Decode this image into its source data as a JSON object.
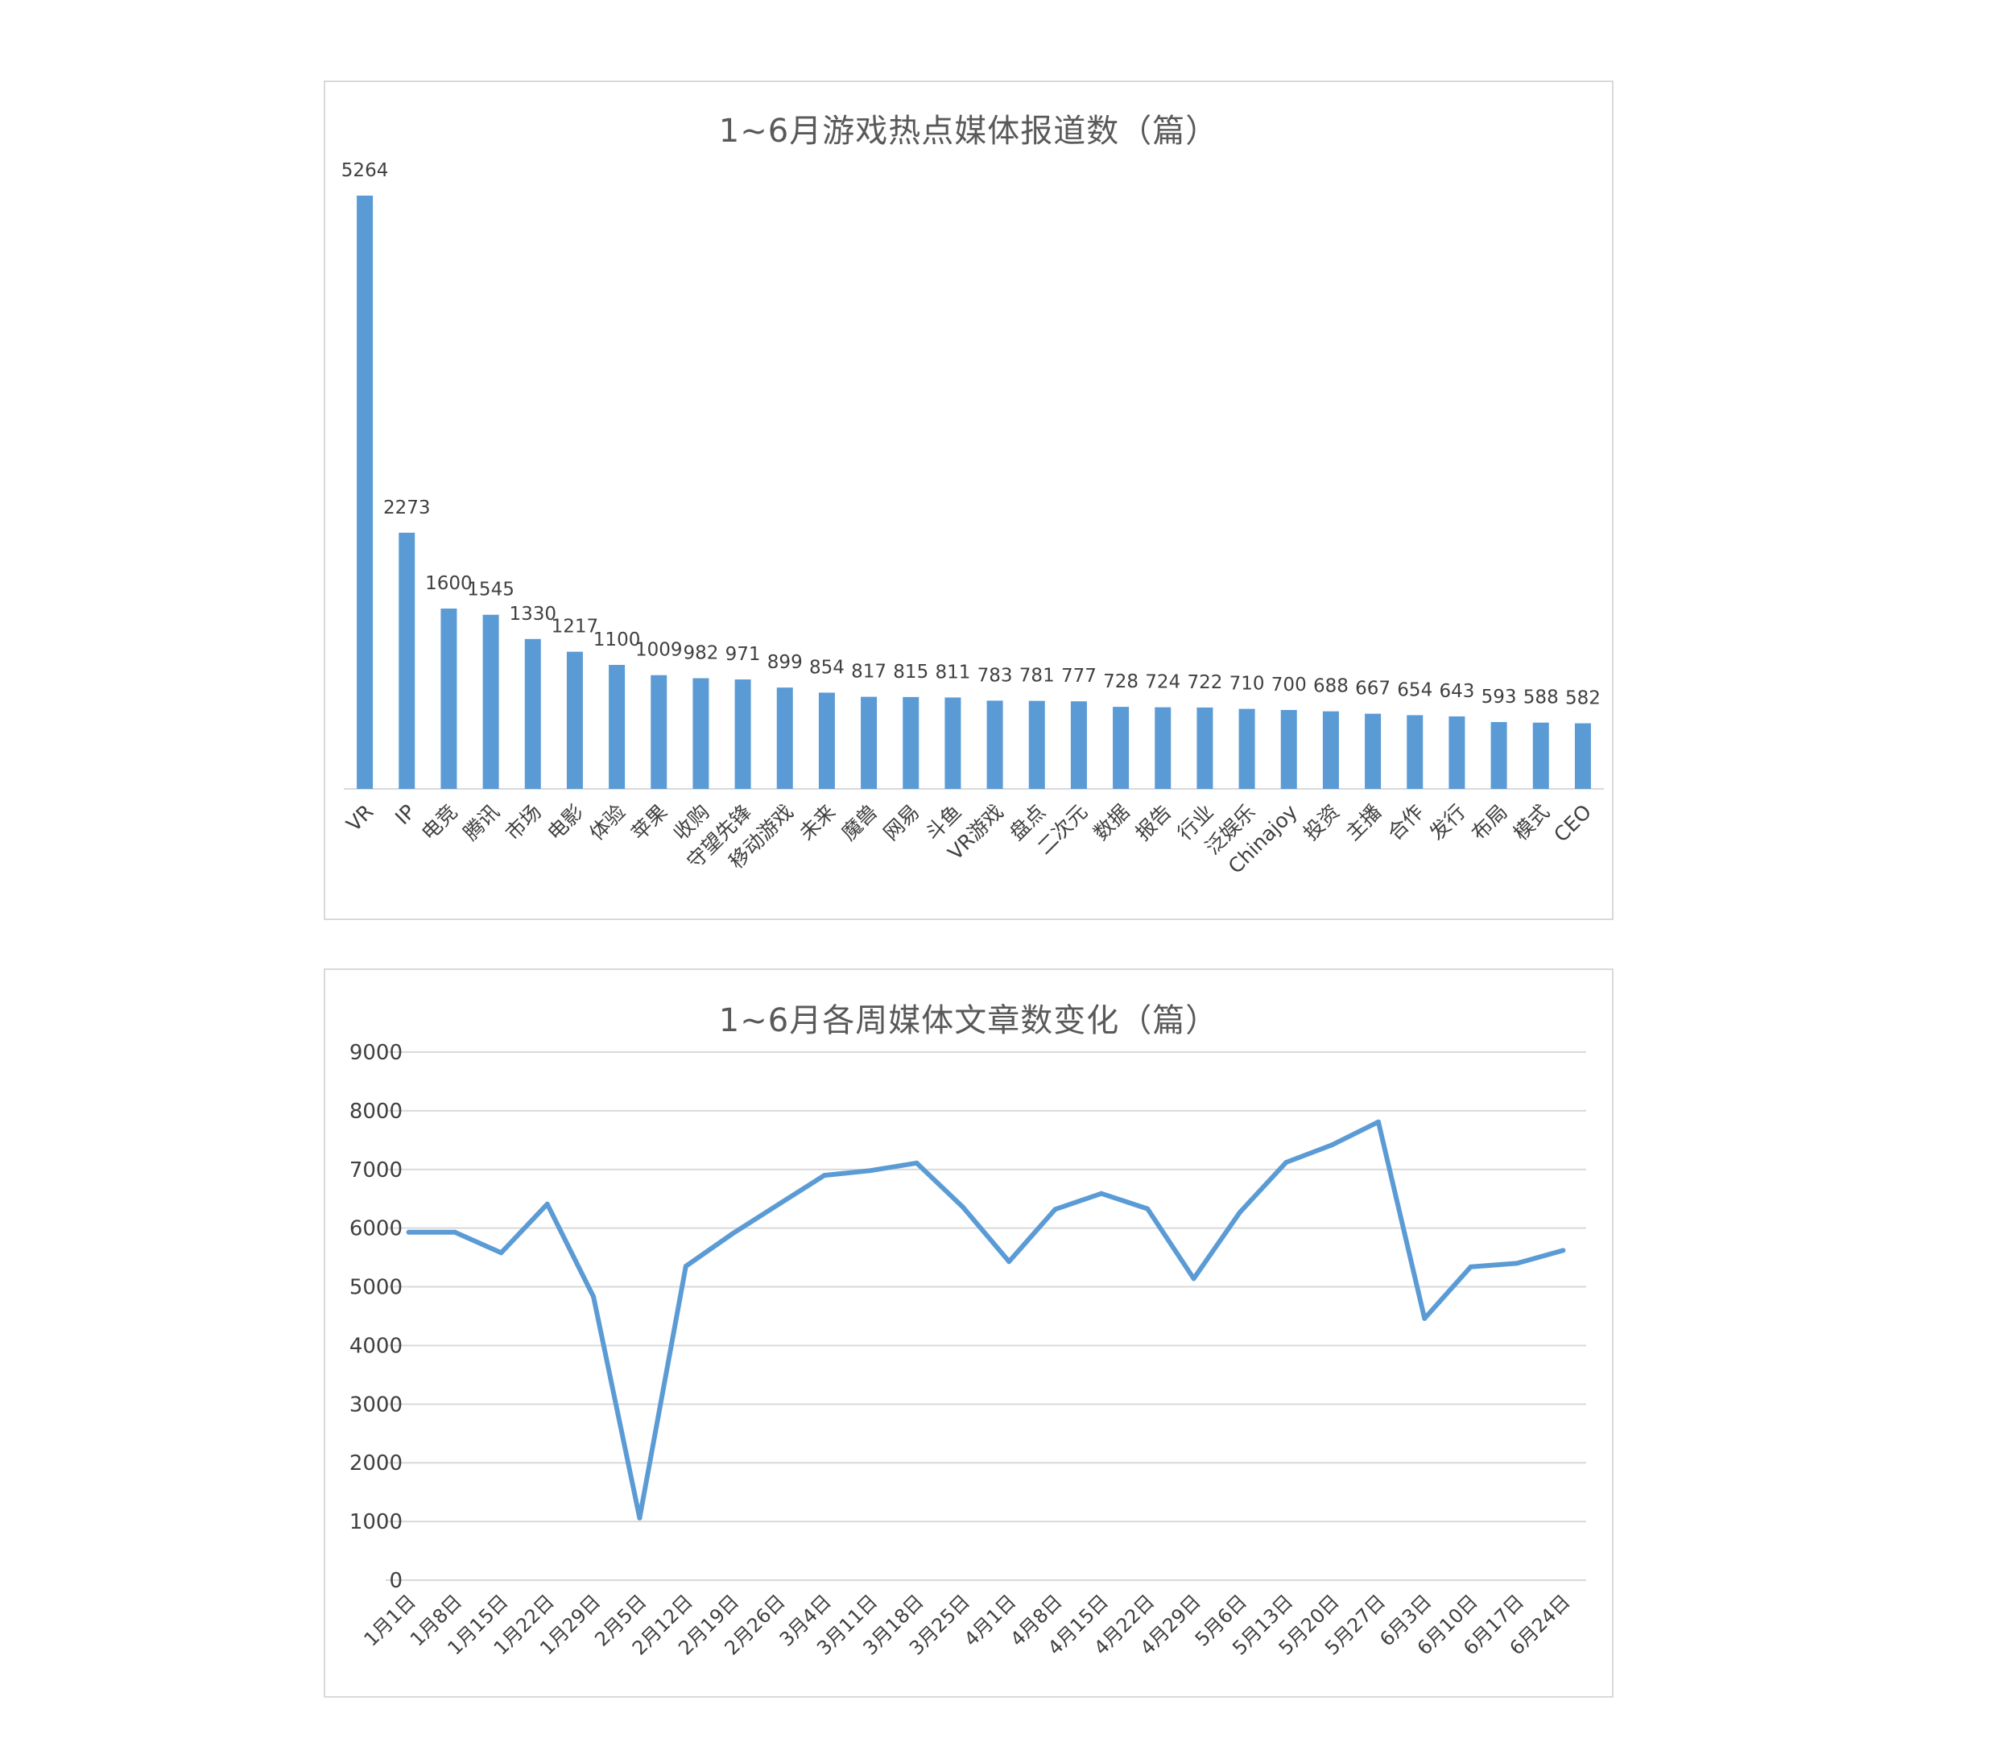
{
  "colors": {
    "series": "#5b9bd5",
    "grid": "#d9d9d9",
    "axis": "#d9d9d9",
    "text": "#404040",
    "title": "#595959"
  },
  "chart_data": [
    {
      "type": "bar",
      "title": "1~6月游戏热点媒体报道数（篇）",
      "categories": [
        "VR",
        "IP",
        "电竞",
        "腾讯",
        "市场",
        "电影",
        "体验",
        "苹果",
        "收购",
        "守望先锋",
        "移动游戏",
        "未来",
        "魔兽",
        "网易",
        "斗鱼",
        "VR游戏",
        "盘点",
        "二次元",
        "数据",
        "报告",
        "行业",
        "泛娱乐",
        "Chinajoy",
        "投资",
        "主播",
        "合作",
        "发行",
        "布局",
        "模式",
        "CEO"
      ],
      "values": [
        5264,
        2273,
        1600,
        1545,
        1330,
        1217,
        1100,
        1009,
        982,
        971,
        899,
        854,
        817,
        815,
        811,
        783,
        781,
        777,
        728,
        724,
        722,
        710,
        700,
        688,
        667,
        654,
        643,
        593,
        588,
        582
      ],
      "data_labels": true,
      "gridlines": false,
      "legend": "none"
    },
    {
      "type": "line",
      "title": "1~6月各周媒体文章数变化（篇）",
      "x": [
        "1月1日",
        "1月8日",
        "1月15日",
        "1月22日",
        "1月29日",
        "2月5日",
        "2月12日",
        "2月19日",
        "2月26日",
        "3月4日",
        "3月11日",
        "3月18日",
        "3月25日",
        "4月1日",
        "4月8日",
        "4月15日",
        "4月22日",
        "4月29日",
        "5月6日",
        "5月13日",
        "5月20日",
        "5月27日",
        "6月3日",
        "6月10日",
        "6月17日",
        "6月24日"
      ],
      "values": [
        5930,
        5930,
        5580,
        6410,
        4830,
        1060,
        5350,
        5900,
        6400,
        6900,
        6980,
        7110,
        6360,
        5430,
        6320,
        6590,
        6330,
        5140,
        6270,
        7120,
        7420,
        7810,
        4460,
        5340,
        5400,
        5620
      ],
      "yticks": [
        "0",
        "1000",
        "2000",
        "3000",
        "4000",
        "5000",
        "6000",
        "7000",
        "8000",
        "9000"
      ],
      "ylim": [
        0,
        9000
      ],
      "gridlines": true,
      "legend": "none"
    }
  ]
}
